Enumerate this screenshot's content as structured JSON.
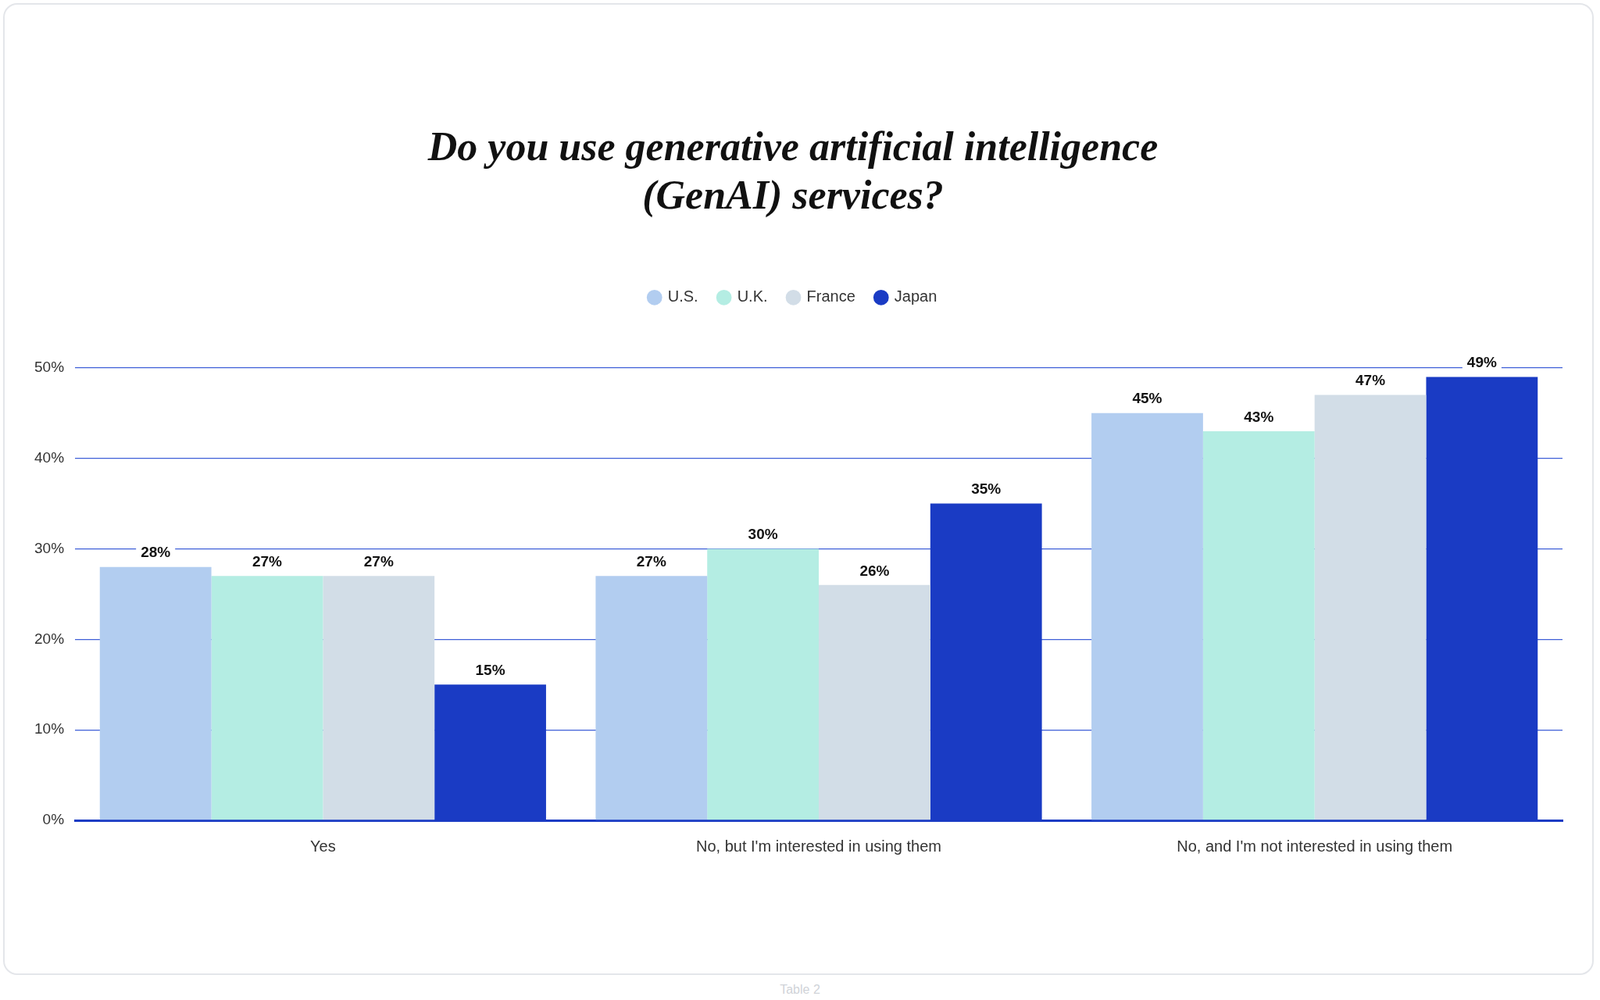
{
  "chart_data": {
    "type": "bar",
    "title": [
      "Do you use generative artificial intelligence",
      "(GenAI) services?"
    ],
    "caption": "Table 2",
    "categories": [
      "Yes",
      "No, but I'm interested in using them",
      "No, and I'm not interested in using them"
    ],
    "series": [
      {
        "name": "U.S.",
        "color": "#b2cdf0",
        "values": [
          28,
          27,
          45
        ],
        "value_labels": [
          "28%",
          "27%",
          "45%"
        ]
      },
      {
        "name": "U.K.",
        "color": "#b4ede3",
        "values": [
          27,
          30,
          43
        ],
        "value_labels": [
          "27%",
          "30%",
          "43%"
        ]
      },
      {
        "name": "France",
        "color": "#d2dde7",
        "values": [
          27,
          26,
          47
        ],
        "value_labels": [
          "27%",
          "26%",
          "47%"
        ]
      },
      {
        "name": "Japan",
        "color": "#1a3bc4",
        "values": [
          15,
          35,
          49
        ],
        "value_labels": [
          "15%",
          "35%",
          "49%"
        ]
      }
    ],
    "ylim": [
      0,
      50
    ],
    "yticks": [
      {
        "value": 0,
        "label": "0%"
      },
      {
        "value": 10,
        "label": "10%"
      },
      {
        "value": 20,
        "label": "20%"
      },
      {
        "value": 30,
        "label": "30%"
      },
      {
        "value": 40,
        "label": "40%"
      },
      {
        "value": 50,
        "label": "50%"
      }
    ],
    "grid": true,
    "legend": "top",
    "data_labels": true
  }
}
